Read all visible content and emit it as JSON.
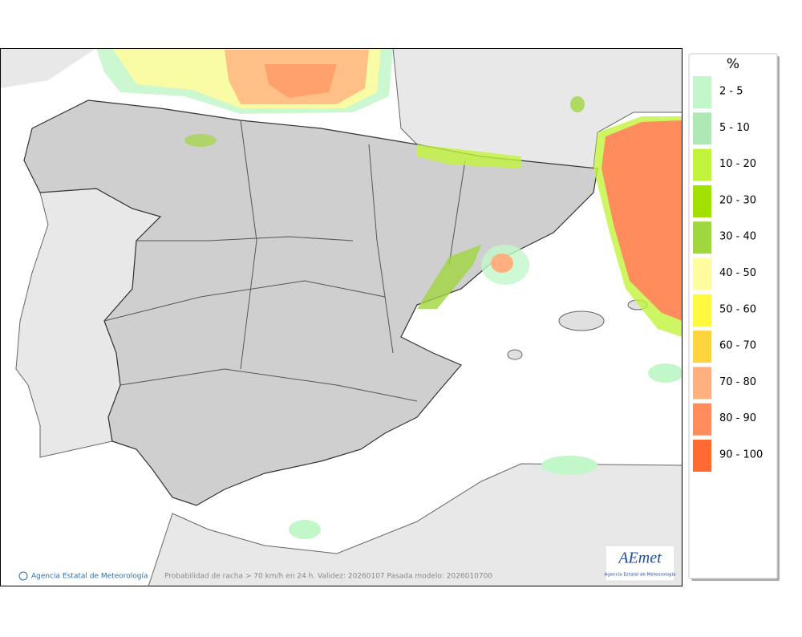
{
  "legend": {
    "title": "%",
    "items": [
      {
        "label": "2 - 5",
        "color": "#c2f7c9"
      },
      {
        "label": "5 - 10",
        "color": "#aee8b5"
      },
      {
        "label": "10 - 20",
        "color": "#c2f43c"
      },
      {
        "label": "20 - 30",
        "color": "#a2e000"
      },
      {
        "label": "30 - 40",
        "color": "#a0d63e"
      },
      {
        "label": "40 - 50",
        "color": "#fffca0"
      },
      {
        "label": "50 - 60",
        "color": "#fffa3e"
      },
      {
        "label": "60 - 70",
        "color": "#ffd43c"
      },
      {
        "label": "70 - 80",
        "color": "#ffb07e"
      },
      {
        "label": "80 - 90",
        "color": "#ff8c5c"
      },
      {
        "label": "90 - 100",
        "color": "#ff6a32"
      }
    ]
  },
  "footer": {
    "credit": "Agencia Estatal de Meteorología",
    "caption": "Probabilidad de racha > 70 km/h en 24 h. Validez: 20260107 Pasada modelo: 2026010700"
  },
  "logo": {
    "name": "AEmet",
    "subtitle": "Agencia Estatal de Meteorología"
  }
}
